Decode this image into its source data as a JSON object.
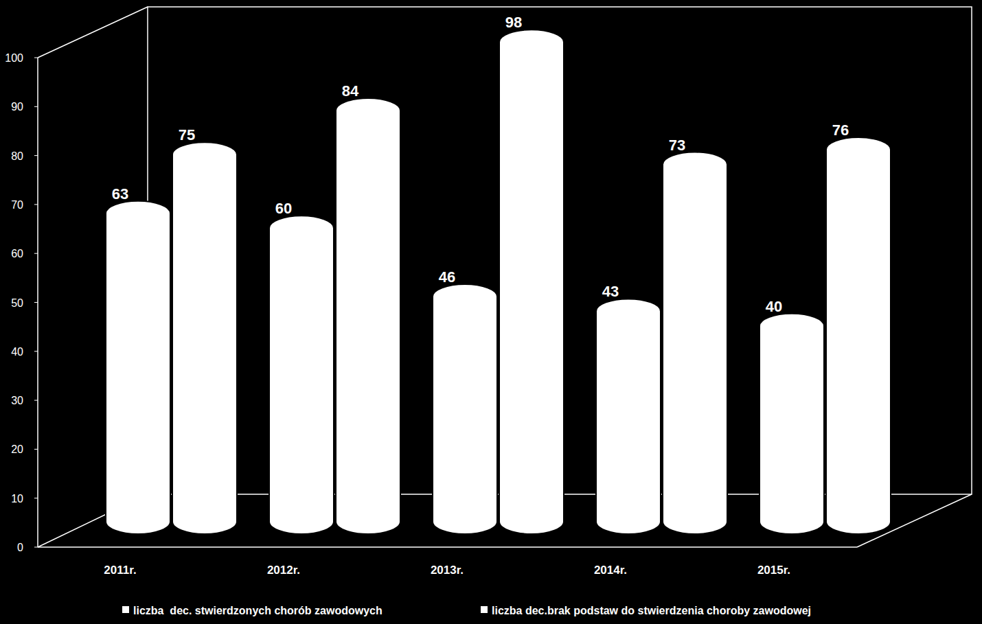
{
  "chart_data": {
    "type": "bar",
    "categories": [
      "2011r.",
      "2012r.",
      "2013r.",
      "2014r.",
      "2015r."
    ],
    "series": [
      {
        "name": "liczba  dec. stwierdzonych chorób zawodowych",
        "color": "#ffffff",
        "values": [
          63,
          60,
          46,
          43,
          40
        ]
      },
      {
        "name": "liczba dec.brak podstaw do stwierdzenia choroby zawodowej",
        "color": "#ffffff",
        "values": [
          75,
          84,
          98,
          73,
          76
        ]
      }
    ],
    "ylim": [
      0,
      100
    ],
    "yticks": [
      0,
      10,
      20,
      30,
      40,
      50,
      60,
      70,
      80,
      90,
      100
    ],
    "grid": false,
    "legend": "bottom",
    "data_labels": true
  }
}
